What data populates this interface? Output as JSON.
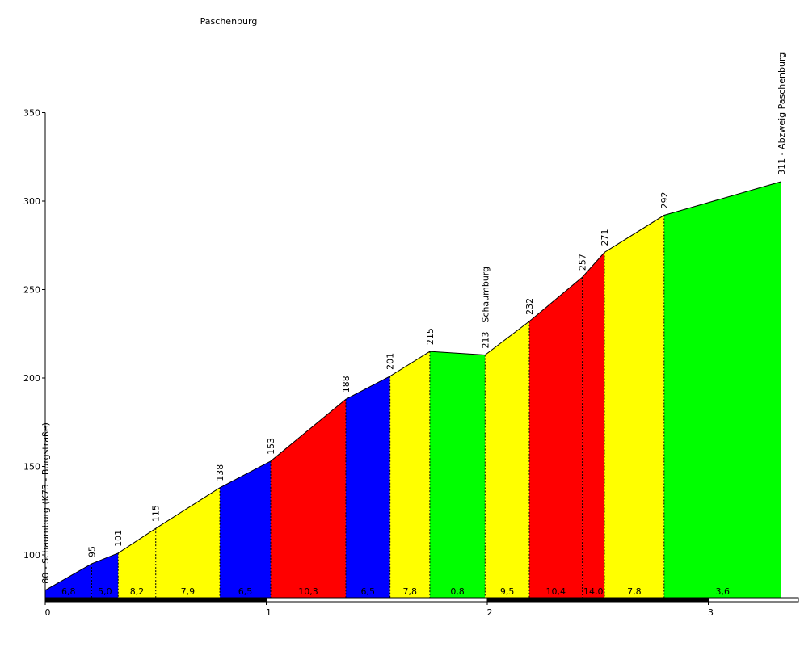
{
  "chart_data": {
    "type": "area",
    "title": "Paschenburg",
    "xlabel": "",
    "ylabel": "",
    "xlim": [
      0,
      3.4
    ],
    "ylim": [
      75,
      350
    ],
    "x_ticks": [
      "0",
      "1",
      "2",
      "3"
    ],
    "y_ticks": [
      "100",
      "150",
      "200",
      "250",
      "300",
      "350"
    ],
    "grid": false,
    "legend": "none",
    "colors": {
      "blue": "#0000ff",
      "yellow": "#ffff00",
      "red": "#ff0000",
      "green": "#00ff00"
    },
    "points": [
      {
        "x": 0.0,
        "y": 80,
        "label": "80 - Schaumburg (K73 - Burgstraße)"
      },
      {
        "x": 0.21,
        "y": 95,
        "label": "95"
      },
      {
        "x": 0.33,
        "y": 101,
        "label": "101"
      },
      {
        "x": 0.5,
        "y": 115,
        "label": "115"
      },
      {
        "x": 0.79,
        "y": 138,
        "label": "138"
      },
      {
        "x": 1.02,
        "y": 153,
        "label": "153"
      },
      {
        "x": 1.36,
        "y": 188,
        "label": "188"
      },
      {
        "x": 1.56,
        "y": 201,
        "label": "201"
      },
      {
        "x": 1.74,
        "y": 215,
        "label": "215"
      },
      {
        "x": 1.99,
        "y": 213,
        "label": "213 - Schaumburg"
      },
      {
        "x": 2.19,
        "y": 232,
        "label": "232"
      },
      {
        "x": 2.43,
        "y": 257,
        "label": "257"
      },
      {
        "x": 2.53,
        "y": 271,
        "label": "271"
      },
      {
        "x": 2.8,
        "y": 292,
        "label": "292"
      },
      {
        "x": 3.33,
        "y": 311,
        "label": "311 - Abzweig Paschenburg"
      }
    ],
    "segments": [
      {
        "gradient": "6,8",
        "color": "blue"
      },
      {
        "gradient": "5,0",
        "color": "blue"
      },
      {
        "gradient": "8,2",
        "color": "yellow"
      },
      {
        "gradient": "7,9",
        "color": "yellow"
      },
      {
        "gradient": "6,5",
        "color": "blue"
      },
      {
        "gradient": "10,3",
        "color": "red"
      },
      {
        "gradient": "6,5",
        "color": "blue"
      },
      {
        "gradient": "7,8",
        "color": "yellow"
      },
      {
        "gradient": "0,8",
        "color": "green"
      },
      {
        "gradient": "9,5",
        "color": "yellow"
      },
      {
        "gradient": "10,4",
        "color": "red"
      },
      {
        "gradient": "14,0",
        "color": "red"
      },
      {
        "gradient": "7,8",
        "color": "yellow"
      },
      {
        "gradient": "3,6",
        "color": "green"
      }
    ]
  }
}
